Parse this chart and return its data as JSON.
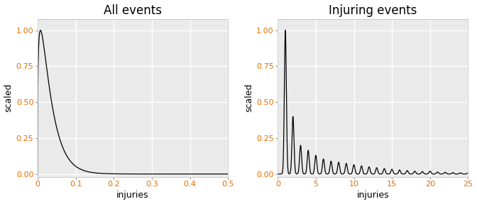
{
  "title_left": "All events",
  "title_right": "Injuring events",
  "xlabel": "injuries",
  "ylabel": "scaled",
  "bg_color": "#EAEAEA",
  "line_color": "#000000",
  "fig_bg": "#FFFFFF",
  "left_xlim": [
    0,
    0.5
  ],
  "left_ylim": [
    -0.02,
    1.08
  ],
  "left_xticks": [
    0.0,
    0.1,
    0.2,
    0.3,
    0.4,
    0.5
  ],
  "left_yticks": [
    0.0,
    0.25,
    0.5,
    0.75,
    1.0
  ],
  "right_xlim": [
    0,
    25
  ],
  "right_ylim": [
    -0.02,
    1.08
  ],
  "right_xticks": [
    0,
    5,
    10,
    15,
    20,
    25
  ],
  "right_yticks": [
    0.0,
    0.25,
    0.5,
    0.75,
    1.0
  ],
  "title_fontsize": 12,
  "label_fontsize": 9,
  "tick_fontsize": 8,
  "tick_color": "#E07000",
  "grid_color": "#FFFFFF",
  "grid_lw": 1.0
}
